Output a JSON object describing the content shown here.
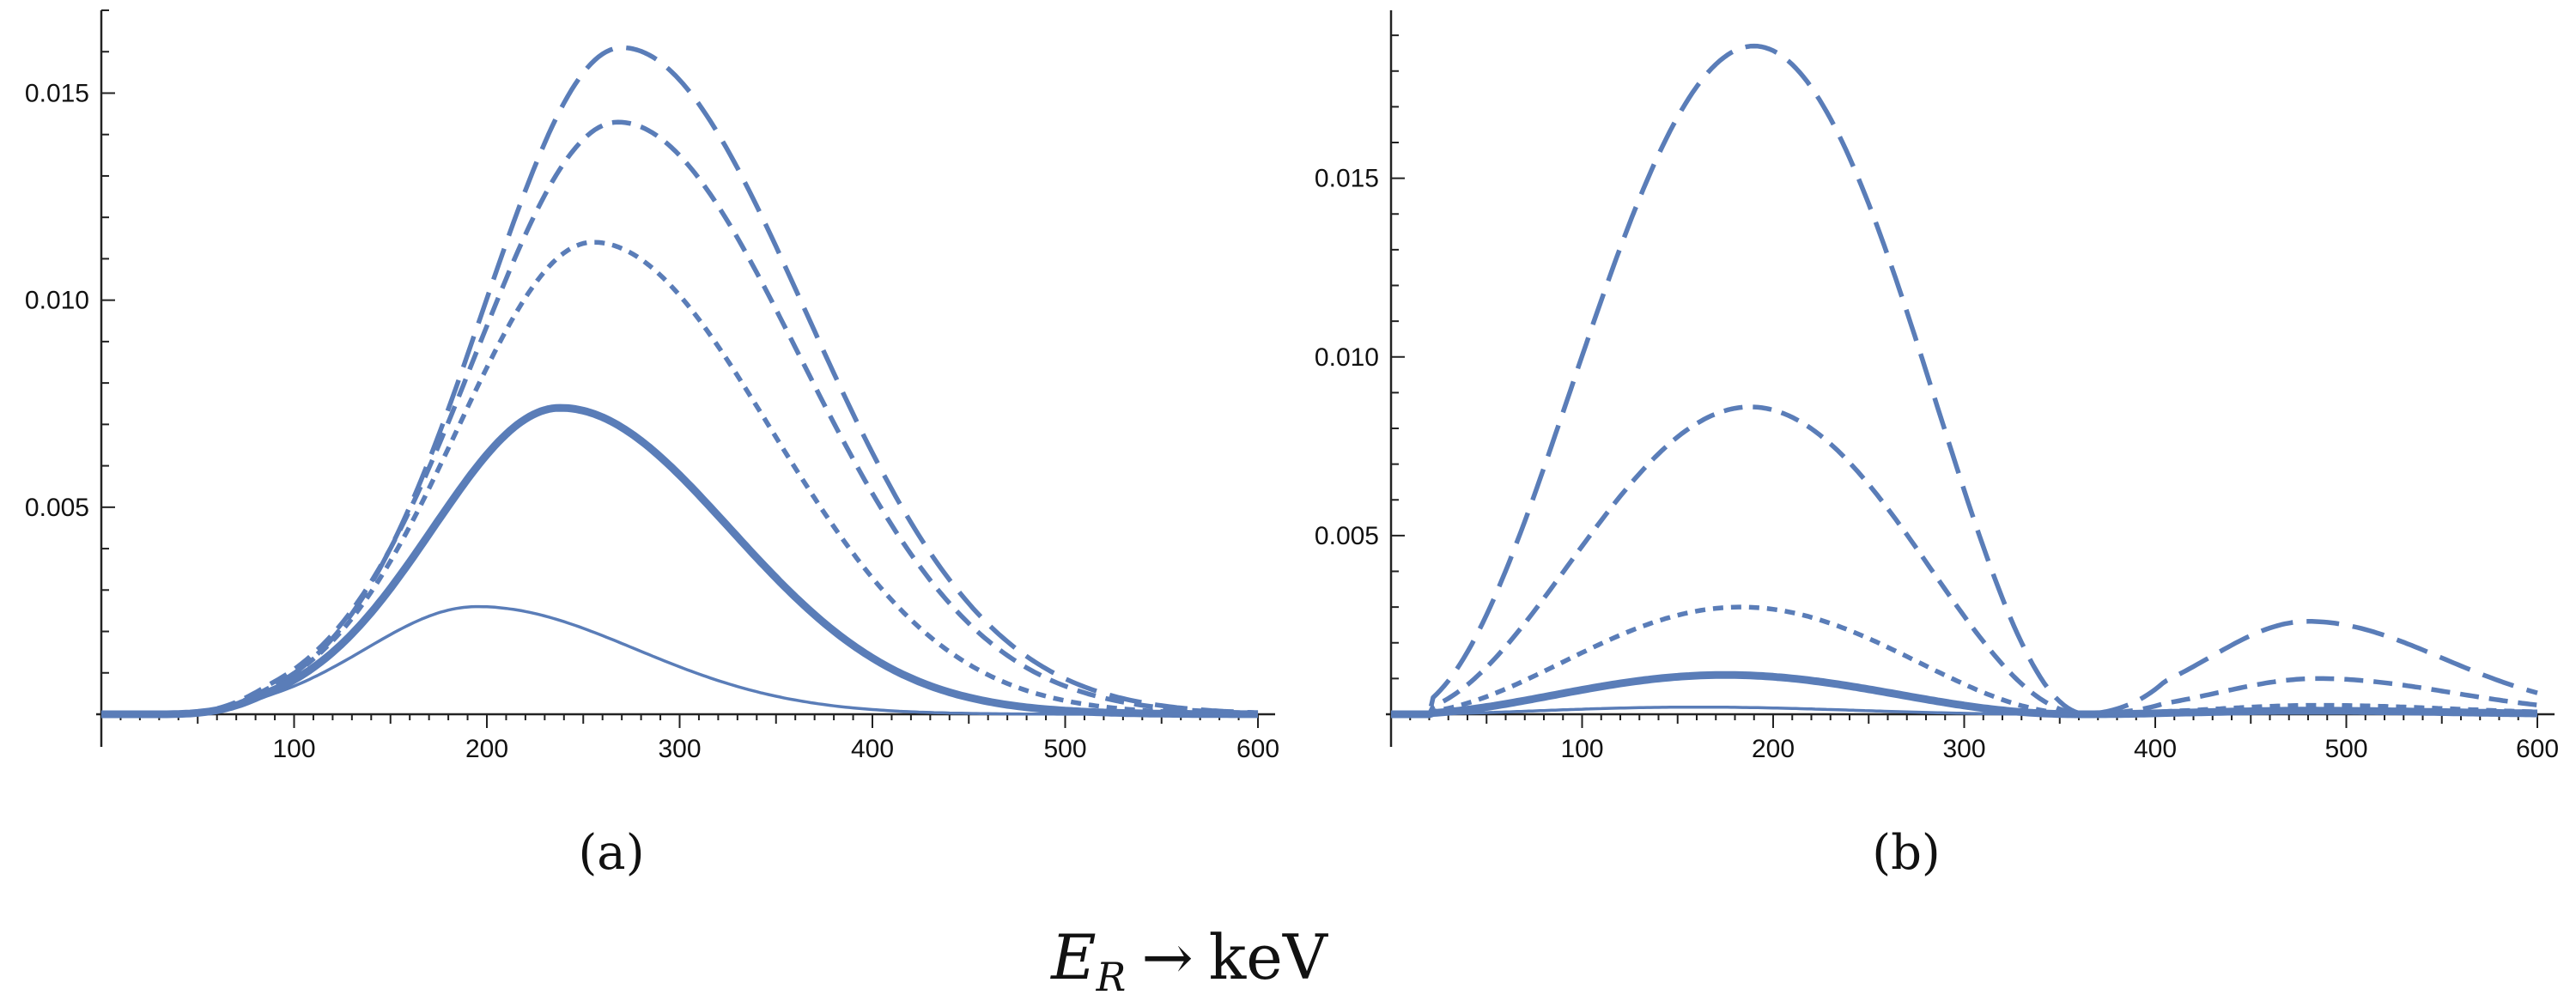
{
  "xlabel": {
    "main": "E",
    "subscript": "R",
    "arrow": "→",
    "unit": "keV"
  },
  "color": "#5a7db8",
  "chart_data": [
    {
      "type": "line",
      "panel_label": "(a)",
      "xlim": [
        0,
        600
      ],
      "ylim": [
        0,
        0.017
      ],
      "x_ticks": [
        100,
        200,
        300,
        400,
        500,
        600
      ],
      "x_tick_labels": [
        "100",
        "200",
        "300",
        "400",
        "500",
        "600"
      ],
      "y_ticks": [
        0.005,
        0.01,
        0.015
      ],
      "y_tick_labels": [
        "0.005",
        "0.010",
        "0.015"
      ],
      "series": [
        {
          "name": "long-dash",
          "style": "long-dash",
          "width": 5.5,
          "peak": 0.0161,
          "peak_x": 270,
          "sigma_left": 72,
          "sigma_right": 95
        },
        {
          "name": "medium-dash",
          "style": "medium-dash",
          "width": 5.5,
          "peak": 0.0143,
          "peak_x": 268,
          "sigma_left": 74,
          "sigma_right": 94
        },
        {
          "name": "short-dash",
          "style": "short-dash",
          "width": 5.5,
          "peak": 0.0114,
          "peak_x": 255,
          "sigma_left": 70,
          "sigma_right": 92
        },
        {
          "name": "thick-solid",
          "style": "solid",
          "width": 9,
          "peak": 0.0074,
          "peak_x": 238,
          "sigma_left": 66,
          "sigma_right": 88
        },
        {
          "name": "thin-solid",
          "style": "solid",
          "width": 3.5,
          "peak": 0.0026,
          "peak_x": 195,
          "sigma_left": 58,
          "sigma_right": 82
        }
      ]
    },
    {
      "type": "line",
      "panel_label": "(b)",
      "xlim": [
        0,
        600
      ],
      "ylim": [
        0,
        0.0197
      ],
      "x_ticks": [
        100,
        200,
        300,
        400,
        500,
        600
      ],
      "x_tick_labels": [
        "100",
        "200",
        "300",
        "400",
        "500",
        "600"
      ],
      "y_ticks": [
        0.005,
        0.01,
        0.015
      ],
      "y_tick_labels": [
        "0.005",
        "0.010",
        "0.015"
      ],
      "zero_crossing": 365,
      "series": [
        {
          "name": "long-dash",
          "style": "long-dash",
          "width": 5.5,
          "peak": 0.0187,
          "peak_x": 190,
          "second_peak": 0.0026,
          "second_peak_x": 480
        },
        {
          "name": "medium-dash",
          "style": "medium-dash",
          "width": 5.5,
          "peak": 0.0086,
          "peak_x": 188,
          "second_peak": 0.001,
          "second_peak_x": 485
        },
        {
          "name": "short-dash",
          "style": "short-dash",
          "width": 5.5,
          "peak": 0.003,
          "peak_x": 183,
          "second_peak": 0.00025,
          "second_peak_x": 485
        },
        {
          "name": "thick-solid",
          "style": "solid",
          "width": 9,
          "peak": 0.0011,
          "peak_x": 175,
          "second_peak": 0.0001,
          "second_peak_x": 480
        },
        {
          "name": "thin-solid",
          "style": "solid",
          "width": 3.5,
          "peak": 0.0002,
          "peak_x": 160,
          "second_peak": 3e-05,
          "second_peak_x": 480
        }
      ]
    }
  ]
}
